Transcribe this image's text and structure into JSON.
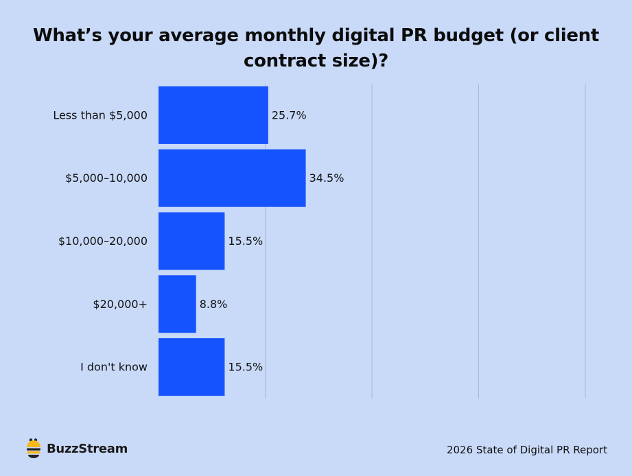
{
  "header": {
    "title": "What’s your average monthly digital PR budget (or client contract size)?"
  },
  "chart_data": {
    "type": "bar",
    "orientation": "horizontal",
    "categories": [
      "Less than $5,000",
      "$5,000–10,000",
      "$10,000–20,000",
      "$20,000+",
      "I don't know"
    ],
    "values": [
      25.7,
      34.5,
      15.5,
      8.8,
      15.5
    ],
    "value_labels": [
      "25.7%",
      "34.5%",
      "15.5%",
      "8.8%",
      "15.5%"
    ],
    "xlim": [
      0,
      100
    ],
    "grid": true,
    "legend": "none",
    "bar_color": "#1553ff",
    "grid_color": "#a9b7d4"
  },
  "footer": {
    "brand": "BuzzStream",
    "report": "2026 State of Digital PR Report"
  },
  "colors": {
    "background": "#c9daf9",
    "logo_yellow": "#f6b81c",
    "logo_dark": "#222222"
  }
}
